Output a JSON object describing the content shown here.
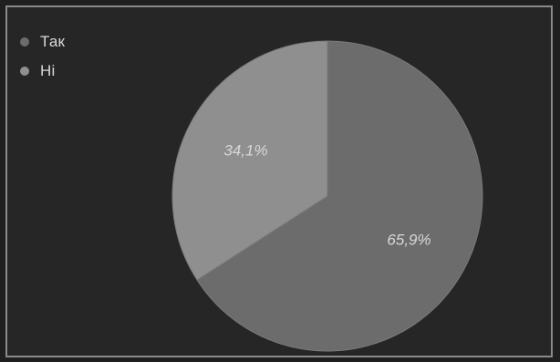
{
  "chart_data": {
    "type": "pie",
    "categories": [
      "Так",
      "Ні"
    ],
    "values": [
      65.9,
      34.1
    ],
    "data_labels": [
      "65,9%",
      "34,1%"
    ],
    "colors": [
      "#6c6c6c",
      "#8f8f8f"
    ],
    "legend_position": "top-left"
  }
}
